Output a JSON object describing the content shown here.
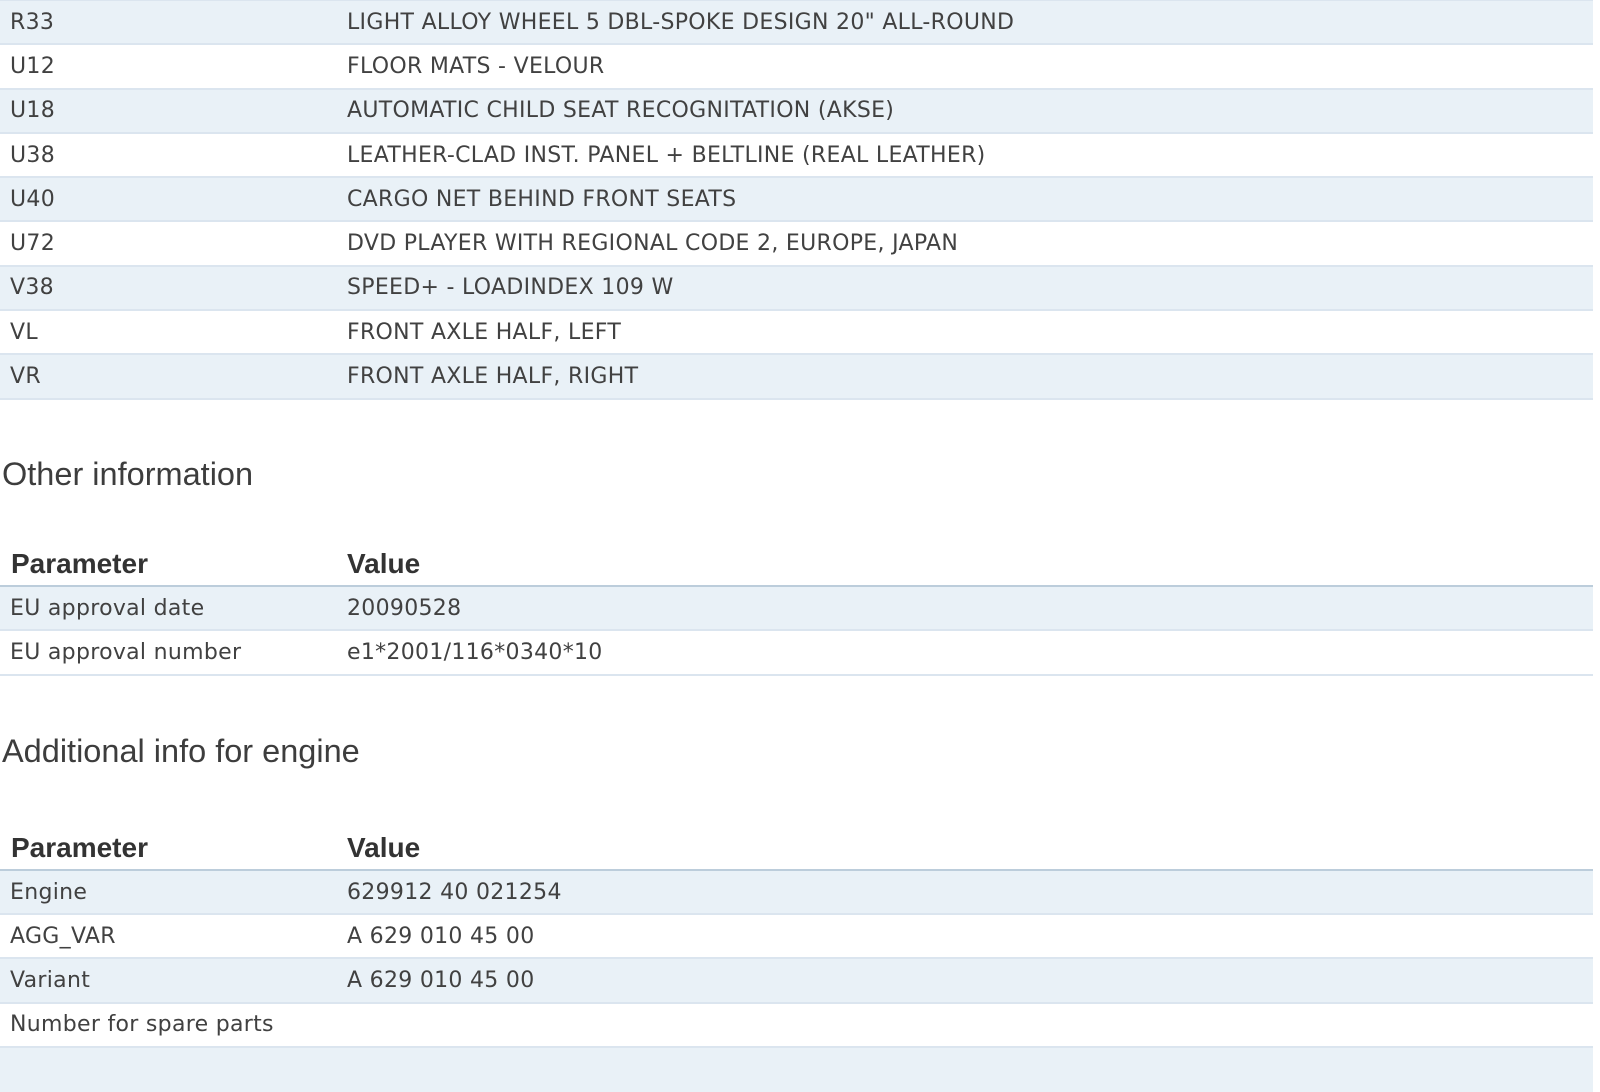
{
  "page": {
    "background": "#ffffff"
  },
  "colors": {
    "row_alt_bg": "#e9f1f7",
    "row_border": "#dbe5ef",
    "header_border": "#bccddb",
    "row_text": "#414141",
    "header_text": "#333333",
    "heading_text": "#3d3d3d"
  },
  "options_table": {
    "rows": [
      {
        "code": "R33",
        "description": "LIGHT ALLOY WHEEL 5 DBL-SPOKE DESIGN 20\" ALL-ROUND"
      },
      {
        "code": "U12",
        "description": "FLOOR MATS - VELOUR"
      },
      {
        "code": "U18",
        "description": "AUTOMATIC CHILD SEAT RECOGNITATION (AKSE)"
      },
      {
        "code": "U38",
        "description": "LEATHER-CLAD INST. PANEL + BELTLINE (REAL LEATHER)"
      },
      {
        "code": "U40",
        "description": "CARGO NET BEHIND FRONT SEATS"
      },
      {
        "code": "U72",
        "description": "DVD PLAYER WITH REGIONAL CODE 2, EUROPE, JAPAN"
      },
      {
        "code": "V38",
        "description": "SPEED+ - LOADINDEX 109 W"
      },
      {
        "code": "VL",
        "description": "FRONT AXLE HALF, LEFT"
      },
      {
        "code": "VR",
        "description": "FRONT AXLE HALF, RIGHT"
      }
    ]
  },
  "other_information": {
    "title": "Other information",
    "columns": {
      "parameter": "Parameter",
      "value": "Value"
    },
    "rows": [
      {
        "parameter": "EU approval date",
        "value": "20090528"
      },
      {
        "parameter": "EU approval number",
        "value": "e1*2001/116*0340*10"
      }
    ]
  },
  "engine_info": {
    "title": "Additional info for engine",
    "columns": {
      "parameter": "Parameter",
      "value": "Value"
    },
    "rows": [
      {
        "parameter": "Engine",
        "value": "629912 40 021254"
      },
      {
        "parameter": "AGG_VAR",
        "value": "A 629 010 45 00"
      },
      {
        "parameter": "Variant",
        "value": "A 629 010 45 00"
      },
      {
        "parameter": "Number for spare parts",
        "value": ""
      }
    ]
  }
}
